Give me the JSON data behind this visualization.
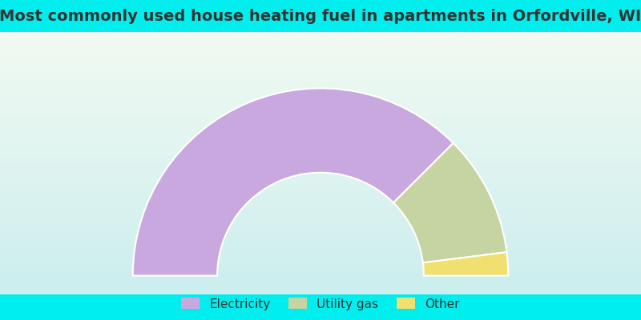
{
  "title": "Most commonly used house heating fuel in apartments in Orfordville, WI",
  "segments": [
    {
      "label": "Electricity",
      "value": 75.0,
      "color": "#c9a8e0"
    },
    {
      "label": "Utility gas",
      "value": 21.0,
      "color": "#c5d4a0"
    },
    {
      "label": "Other",
      "value": 4.0,
      "color": "#f0e070"
    }
  ],
  "background_color": "#00eeee",
  "chart_bg_top": "#e8f5e9",
  "chart_bg_bottom": "#d0eeee",
  "title_color": "#333333",
  "title_fontsize": 14,
  "legend_fontsize": 11
}
